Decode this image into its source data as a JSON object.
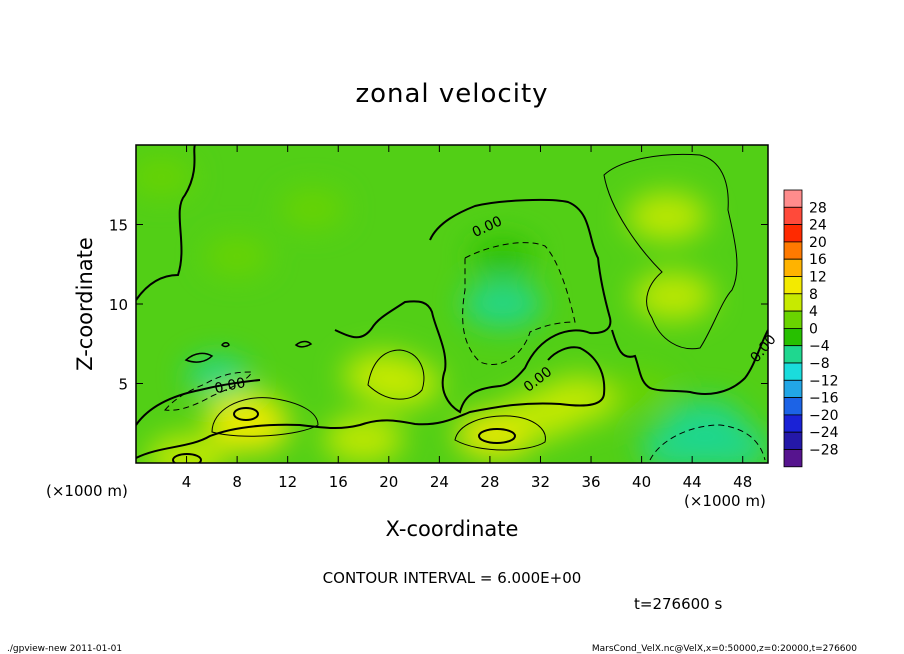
{
  "chart_data": {
    "type": "heatmap",
    "title": "zonal velocity",
    "xlabel": "X-coordinate",
    "ylabel": "Z-coordinate",
    "x_unit": "(×1000 m)",
    "z_unit": "(×1000 m)",
    "xlim": [
      0,
      50
    ],
    "ylim": [
      0,
      20
    ],
    "x_ticks": [
      "4",
      "8",
      "12",
      "16",
      "20",
      "24",
      "28",
      "32",
      "36",
      "40",
      "44",
      "48"
    ],
    "y_ticks": [
      "5",
      "10",
      "15"
    ],
    "colorbar_labels": [
      "28",
      "24",
      "20",
      "16",
      "12",
      "8",
      "4",
      "0",
      "−4",
      "−8",
      "−12",
      "−16",
      "−20",
      "−24",
      "−28"
    ],
    "colorbar_colors": [
      "#ff8c8c",
      "#ff4a3a",
      "#ff2a00",
      "#ff7a00",
      "#ffb300",
      "#f3ea00",
      "#c7ea00",
      "#6ad400",
      "#27c000",
      "#1fd78f",
      "#1adcdc",
      "#22a6e6",
      "#1c63e6",
      "#1a22d6",
      "#2418a8",
      "#56148e"
    ],
    "contour_labels": [
      "0.00",
      "0.00",
      "0.00",
      "0.00"
    ],
    "contour_interval": "CONTOUR INTERVAL = 6.000E+00",
    "time": "t=276600 s",
    "features": [
      {
        "x": 2,
        "z": 18,
        "value": 1.5
      },
      {
        "x": 8,
        "z": 13,
        "value": 1.2
      },
      {
        "x": 14,
        "z": 16,
        "value": 1.0
      },
      {
        "x": 42,
        "z": 15.5,
        "value": 7
      },
      {
        "x": 42.5,
        "z": 10.5,
        "value": 6
      },
      {
        "x": 29,
        "z": 10,
        "value": -5
      },
      {
        "x": 29,
        "z": 13,
        "value": -3
      },
      {
        "x": 6.5,
        "z": 5.5,
        "value": -4
      },
      {
        "x": 8.5,
        "z": 3.2,
        "value": 8
      },
      {
        "x": 9,
        "z": 2.2,
        "value": 9
      },
      {
        "x": 18,
        "z": 1.5,
        "value": 5
      },
      {
        "x": 19.5,
        "z": 5.5,
        "value": 6
      },
      {
        "x": 21,
        "z": 5,
        "value": 8
      },
      {
        "x": 28.5,
        "z": 1.8,
        "value": 9
      },
      {
        "x": 32,
        "z": 3,
        "value": 5
      },
      {
        "x": 35,
        "z": 4,
        "value": 5
      },
      {
        "x": 45,
        "z": 2.5,
        "value": -6
      },
      {
        "x": 47,
        "z": 1,
        "value": -7
      },
      {
        "x": 43,
        "z": 1,
        "value": -6
      },
      {
        "x": 4,
        "z": 0.3,
        "value": 7
      },
      {
        "x": 40,
        "z": 4.5,
        "value": 1
      }
    ]
  },
  "footer": {
    "left": "./gpview-new   2011-01-01",
    "right": "MarsCond_VelX.nc@VelX,x=0:50000,z=0:20000,t=276600"
  }
}
